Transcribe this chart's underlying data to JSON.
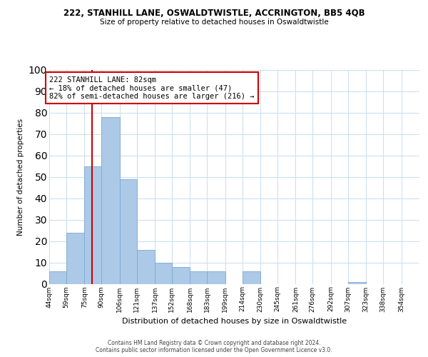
{
  "title1": "222, STANHILL LANE, OSWALDTWISTLE, ACCRINGTON, BB5 4QB",
  "title2": "Size of property relative to detached houses in Oswaldtwistle",
  "xlabel": "Distribution of detached houses by size in Oswaldtwistle",
  "ylabel": "Number of detached properties",
  "bin_labels": [
    "44sqm",
    "59sqm",
    "75sqm",
    "90sqm",
    "106sqm",
    "121sqm",
    "137sqm",
    "152sqm",
    "168sqm",
    "183sqm",
    "199sqm",
    "214sqm",
    "230sqm",
    "245sqm",
    "261sqm",
    "276sqm",
    "292sqm",
    "307sqm",
    "323sqm",
    "338sqm",
    "354sqm"
  ],
  "bin_edges": [
    44,
    59,
    75,
    90,
    106,
    121,
    137,
    152,
    168,
    183,
    199,
    214,
    230,
    245,
    261,
    276,
    292,
    307,
    323,
    338,
    354,
    370
  ],
  "bar_heights": [
    6,
    24,
    55,
    78,
    49,
    16,
    10,
    8,
    6,
    6,
    0,
    6,
    0,
    0,
    0,
    0,
    0,
    1,
    0,
    0,
    0
  ],
  "bar_color": "#adc9e8",
  "bar_edge_color": "#7aaacf",
  "property_size": 82,
  "property_line_color": "#cc0000",
  "annotation_text": "222 STANHILL LANE: 82sqm\n← 18% of detached houses are smaller (47)\n82% of semi-detached houses are larger (216) →",
  "ylim": [
    0,
    100
  ],
  "yticks": [
    0,
    10,
    20,
    30,
    40,
    50,
    60,
    70,
    80,
    90,
    100
  ],
  "footer": "Contains HM Land Registry data © Crown copyright and database right 2024.\nContains public sector information licensed under the Open Government Licence v3.0.",
  "background_color": "#ffffff",
  "grid_color": "#c8ddf0"
}
